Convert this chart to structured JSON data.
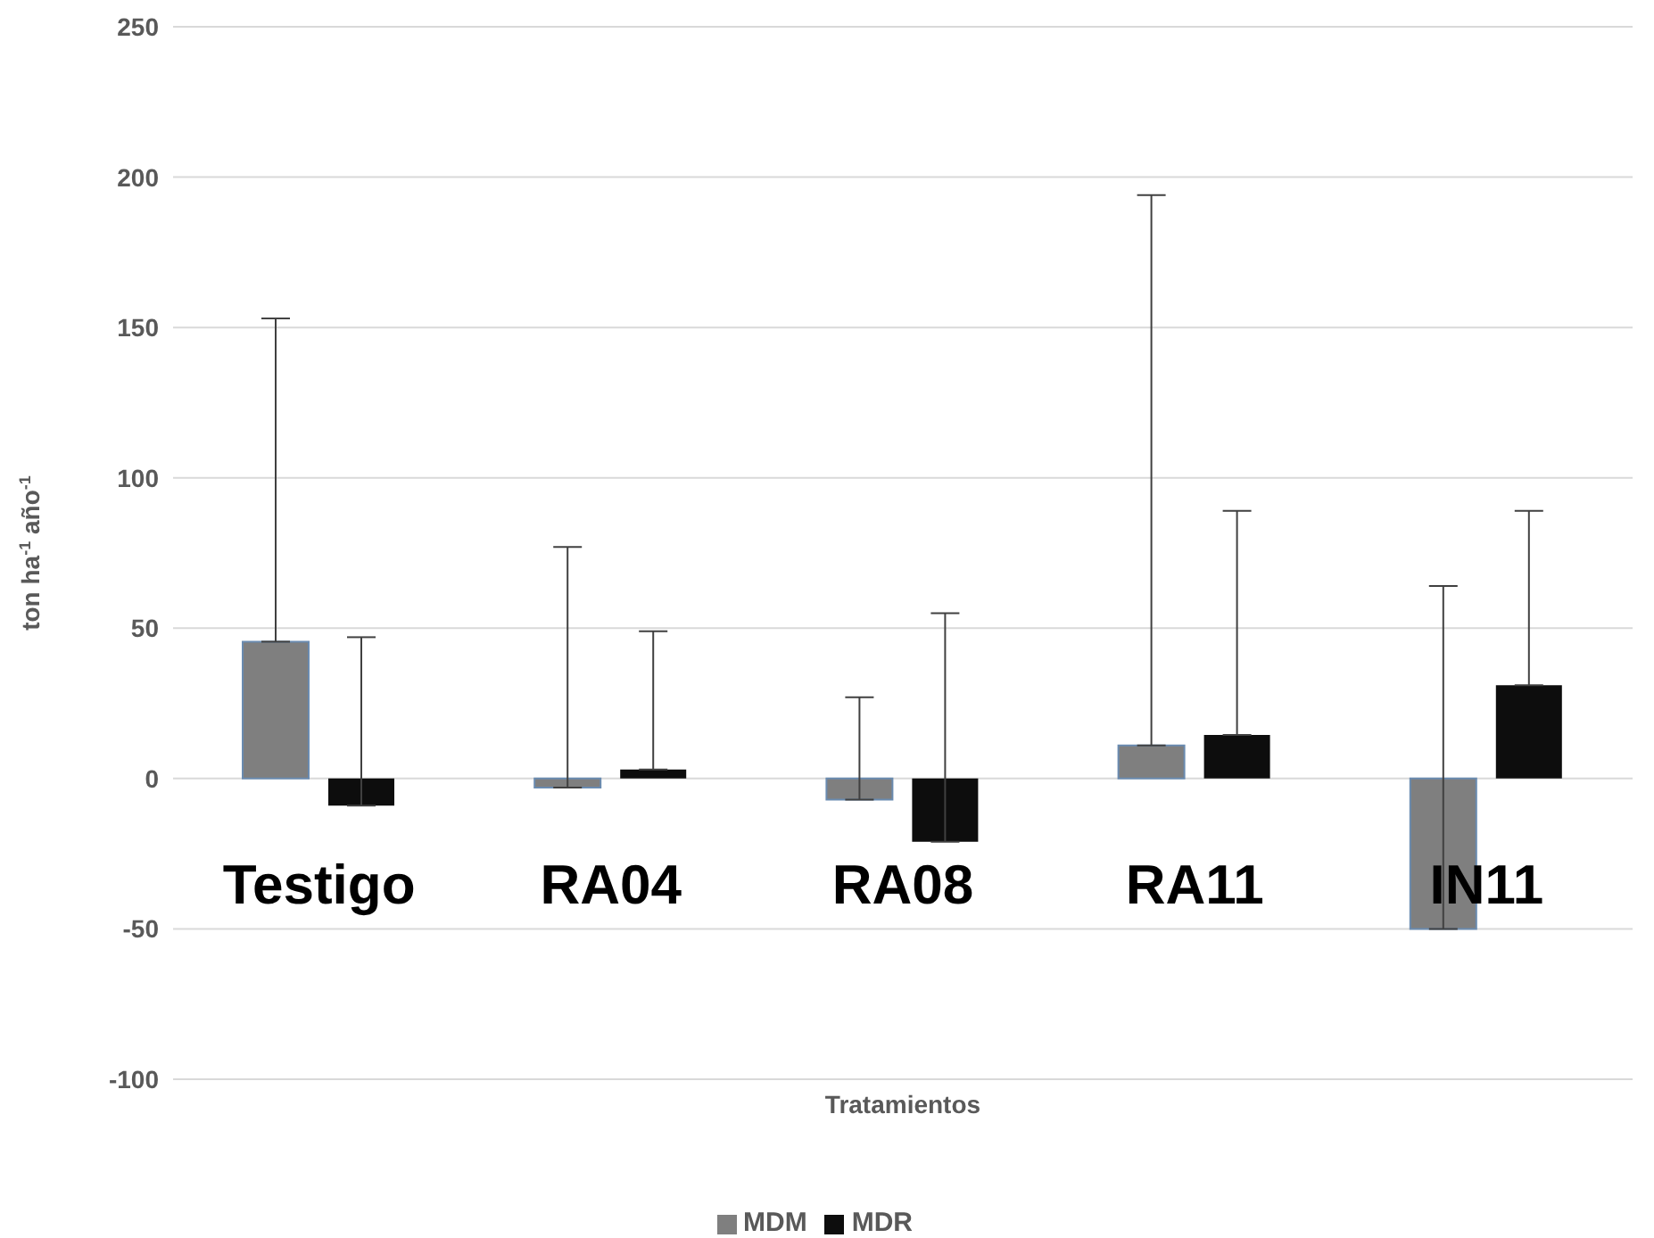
{
  "chart_data": {
    "type": "bar",
    "xlabel": "Tratamientos",
    "ylabel": "ton ha$^{-1}$ año$^{-1}$",
    "categories": [
      "Testigo",
      "RA04",
      "RA08",
      "RA11",
      "IN11"
    ],
    "series": [
      {
        "name": "MDM",
        "color": "#7f7f7f",
        "values": [
          45.5,
          -3,
          -7,
          11,
          -50
        ],
        "errors": [
          [
            45.5,
            153
          ],
          [
            -3,
            77
          ],
          [
            -7,
            27
          ],
          [
            11,
            194
          ],
          [
            -50,
            64
          ]
        ]
      },
      {
        "name": "MDR",
        "color": "#0d0d0d",
        "values": [
          -9,
          3,
          -21,
          14.5,
          31
        ],
        "errors": [
          [
            -9,
            47
          ],
          [
            3,
            49
          ],
          [
            -21,
            55
          ],
          [
            14.5,
            89
          ],
          [
            31,
            89
          ]
        ]
      }
    ],
    "ylim": [
      -100,
      250
    ],
    "yticks": [
      -100,
      -50,
      0,
      50,
      100,
      150,
      200,
      250
    ],
    "grid": "y",
    "legend": "bottom"
  }
}
